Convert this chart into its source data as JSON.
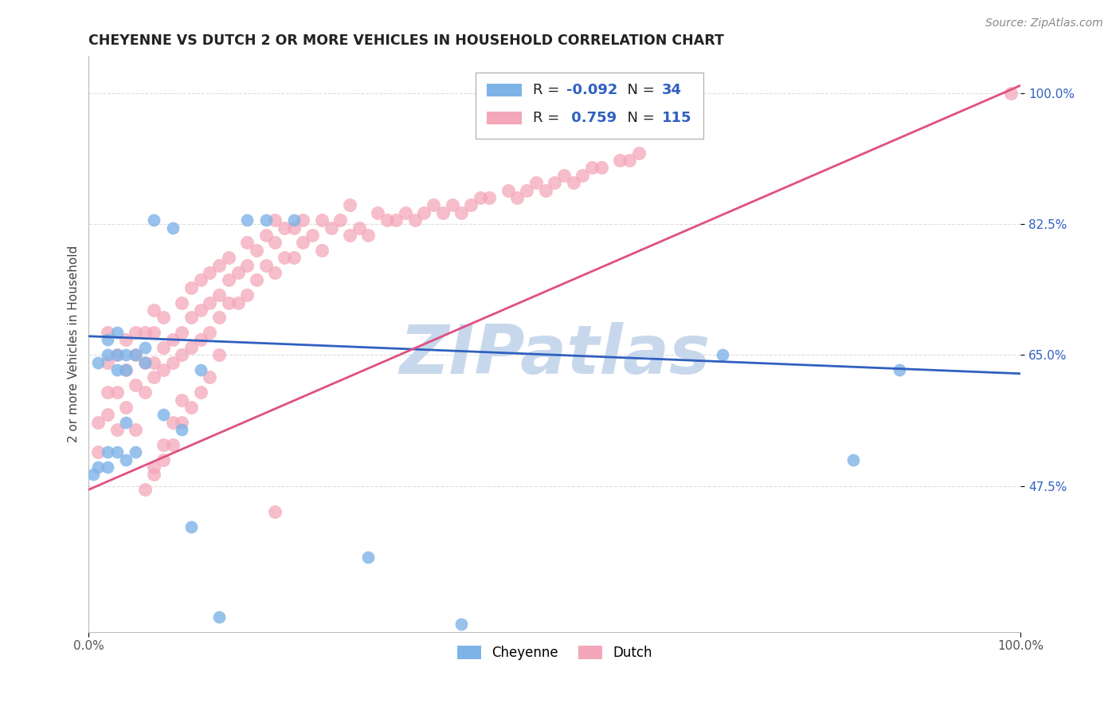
{
  "title": "CHEYENNE VS DUTCH 2 OR MORE VEHICLES IN HOUSEHOLD CORRELATION CHART",
  "source": "Source: ZipAtlas.com",
  "ylabel": "2 or more Vehicles in Household",
  "xlabel": "",
  "xlim": [
    0.0,
    1.0
  ],
  "ylim": [
    0.28,
    1.05
  ],
  "xtick_positions": [
    0.0,
    1.0
  ],
  "xtick_labels": [
    "0.0%",
    "100.0%"
  ],
  "ytick_labels": [
    "47.5%",
    "65.0%",
    "82.5%",
    "100.0%"
  ],
  "ytick_positions": [
    0.475,
    0.65,
    0.825,
    1.0
  ],
  "legend_label1": "Cheyenne",
  "legend_label2": "Dutch",
  "R_cheyenne": -0.092,
  "N_cheyenne": 34,
  "R_dutch": 0.759,
  "N_dutch": 115,
  "color_cheyenne": "#7EB3E8",
  "color_dutch": "#F4A7B9",
  "line_color_cheyenne": "#3060C0",
  "line_color_dutch": "#E05080",
  "watermark": "ZIPatlas",
  "watermark_color": "#C8D8EC",
  "cheyenne_x": [
    0.005,
    0.01,
    0.01,
    0.02,
    0.02,
    0.02,
    0.02,
    0.03,
    0.03,
    0.03,
    0.03,
    0.04,
    0.04,
    0.04,
    0.04,
    0.05,
    0.05,
    0.06,
    0.06,
    0.07,
    0.08,
    0.09,
    0.1,
    0.11,
    0.12,
    0.14,
    0.17,
    0.19,
    0.22,
    0.3,
    0.4,
    0.68,
    0.82,
    0.87
  ],
  "cheyenne_y": [
    0.49,
    0.5,
    0.64,
    0.5,
    0.52,
    0.65,
    0.67,
    0.52,
    0.63,
    0.65,
    0.68,
    0.51,
    0.56,
    0.63,
    0.65,
    0.52,
    0.65,
    0.64,
    0.66,
    0.83,
    0.57,
    0.82,
    0.55,
    0.42,
    0.63,
    0.3,
    0.83,
    0.83,
    0.83,
    0.38,
    0.29,
    0.65,
    0.51,
    0.63
  ],
  "dutch_x": [
    0.01,
    0.01,
    0.02,
    0.02,
    0.02,
    0.02,
    0.03,
    0.03,
    0.03,
    0.04,
    0.04,
    0.04,
    0.05,
    0.05,
    0.05,
    0.05,
    0.06,
    0.06,
    0.06,
    0.07,
    0.07,
    0.07,
    0.07,
    0.08,
    0.08,
    0.08,
    0.09,
    0.09,
    0.1,
    0.1,
    0.1,
    0.11,
    0.11,
    0.11,
    0.12,
    0.12,
    0.12,
    0.13,
    0.13,
    0.13,
    0.14,
    0.14,
    0.14,
    0.15,
    0.15,
    0.15,
    0.16,
    0.16,
    0.17,
    0.17,
    0.17,
    0.18,
    0.18,
    0.19,
    0.19,
    0.2,
    0.2,
    0.2,
    0.21,
    0.21,
    0.22,
    0.22,
    0.23,
    0.23,
    0.24,
    0.25,
    0.25,
    0.26,
    0.27,
    0.28,
    0.28,
    0.29,
    0.3,
    0.31,
    0.32,
    0.33,
    0.34,
    0.35,
    0.36,
    0.37,
    0.38,
    0.39,
    0.4,
    0.41,
    0.42,
    0.43,
    0.45,
    0.46,
    0.47,
    0.48,
    0.49,
    0.5,
    0.51,
    0.52,
    0.53,
    0.54,
    0.55,
    0.57,
    0.58,
    0.59,
    0.07,
    0.08,
    0.09,
    0.1,
    0.06,
    0.07,
    0.08,
    0.09,
    0.1,
    0.11,
    0.12,
    0.13,
    0.14,
    0.2,
    0.99
  ],
  "dutch_y": [
    0.52,
    0.56,
    0.57,
    0.6,
    0.64,
    0.68,
    0.55,
    0.6,
    0.65,
    0.58,
    0.63,
    0.67,
    0.55,
    0.61,
    0.65,
    0.68,
    0.6,
    0.64,
    0.68,
    0.62,
    0.64,
    0.68,
    0.71,
    0.63,
    0.66,
    0.7,
    0.64,
    0.67,
    0.65,
    0.68,
    0.72,
    0.66,
    0.7,
    0.74,
    0.67,
    0.71,
    0.75,
    0.68,
    0.72,
    0.76,
    0.7,
    0.73,
    0.77,
    0.72,
    0.75,
    0.78,
    0.72,
    0.76,
    0.73,
    0.77,
    0.8,
    0.75,
    0.79,
    0.77,
    0.81,
    0.76,
    0.8,
    0.83,
    0.78,
    0.82,
    0.78,
    0.82,
    0.8,
    0.83,
    0.81,
    0.79,
    0.83,
    0.82,
    0.83,
    0.81,
    0.85,
    0.82,
    0.81,
    0.84,
    0.83,
    0.83,
    0.84,
    0.83,
    0.84,
    0.85,
    0.84,
    0.85,
    0.84,
    0.85,
    0.86,
    0.86,
    0.87,
    0.86,
    0.87,
    0.88,
    0.87,
    0.88,
    0.89,
    0.88,
    0.89,
    0.9,
    0.9,
    0.91,
    0.91,
    0.92,
    0.5,
    0.53,
    0.56,
    0.59,
    0.47,
    0.49,
    0.51,
    0.53,
    0.56,
    0.58,
    0.6,
    0.62,
    0.65,
    0.44,
    1.0
  ]
}
